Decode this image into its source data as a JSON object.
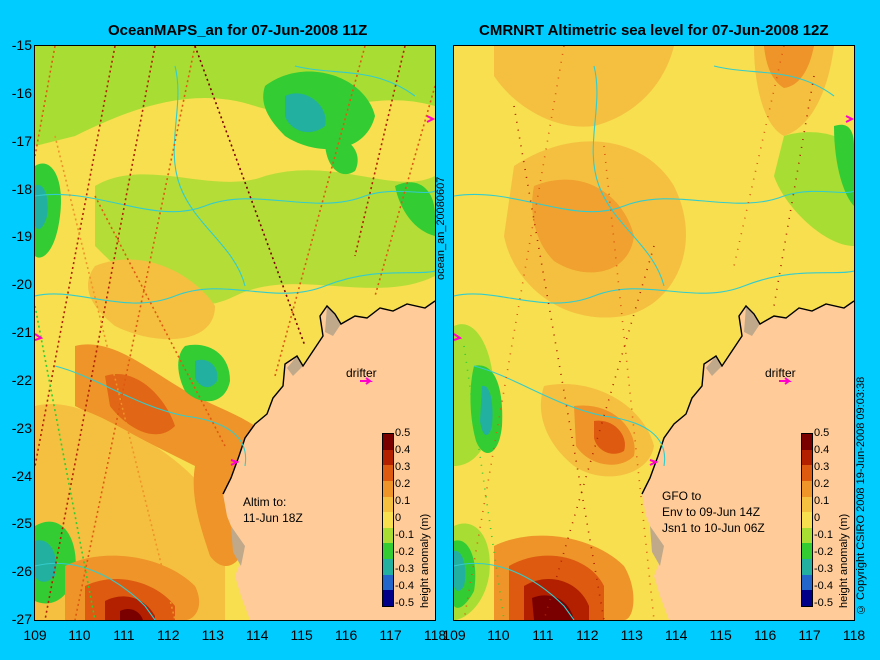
{
  "left_panel": {
    "title": "OceanMAPS_an for 07-Jun-2008 11Z",
    "drifter_label": "drifter",
    "note": "Altim to:\n11-Jun 18Z"
  },
  "right_panel": {
    "title": "CMRNRT Altimetric sea level  for 07-Jun-2008 12Z",
    "drifter_label": "drifter",
    "note": "GFO to\nEnv to 09-Jun 14Z\nJsn1 to 10-Jun 06Z"
  },
  "side_label_left": "ocean_an_20080607",
  "side_label_right": "© Copyright CSIRO 2008   19-Jun-2008 09:03:38",
  "colorbar": {
    "label": "height anomaly (m)",
    "ticks": [
      "0.5",
      "0.4",
      "0.3",
      "0.2",
      "0.1",
      "0",
      "-0.1",
      "-0.2",
      "-0.3",
      "-0.4",
      "-0.5"
    ],
    "colors": [
      "#7a0000",
      "#b22000",
      "#dd5a10",
      "#ee9428",
      "#f5c040",
      "#f7df50",
      "#a8dd33",
      "#33cc33",
      "#22b0a0",
      "#2266cc",
      "#000088"
    ]
  },
  "chart_data": {
    "type": "heatmap",
    "x_ticks": [
      "109",
      "110",
      "111",
      "112",
      "113",
      "114",
      "115",
      "116",
      "117",
      "118"
    ],
    "y_ticks": [
      "-15",
      "-16",
      "-17",
      "-18",
      "-19",
      "-20",
      "-21",
      "-22",
      "-23",
      "-24",
      "-25",
      "-26",
      "-27"
    ],
    "xlim": [
      109,
      118
    ],
    "ylim": [
      -27,
      -15
    ]
  }
}
